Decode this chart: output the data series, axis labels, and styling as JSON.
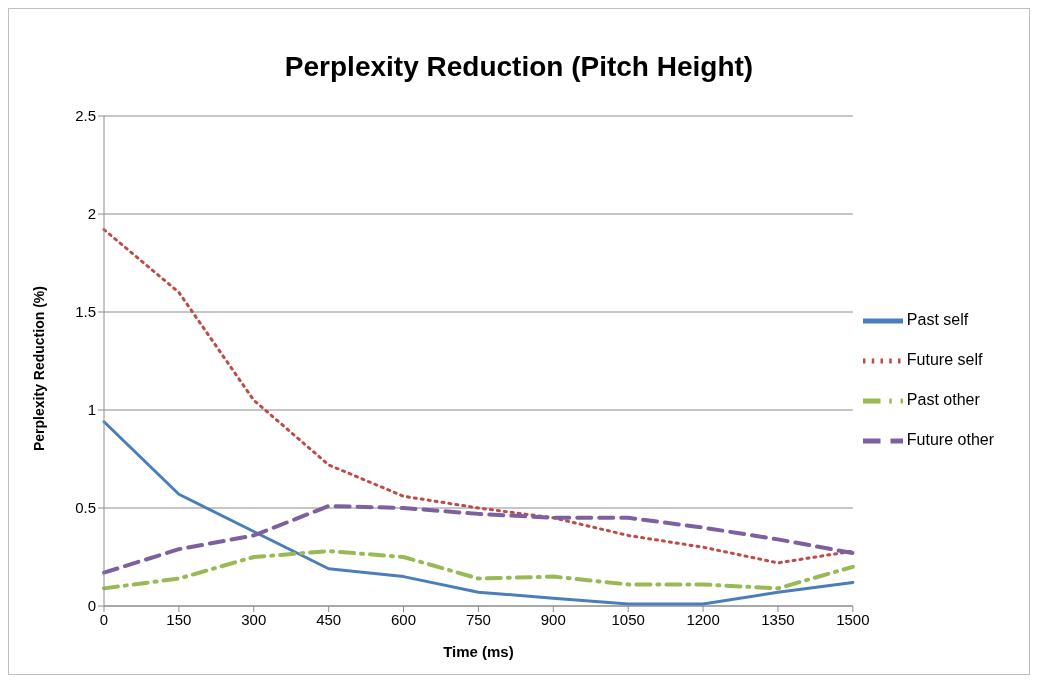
{
  "chart_data": {
    "type": "line",
    "title": "Perplexity Reduction (Pitch Height)",
    "xlabel": "Time (ms)",
    "ylabel": "Perplexity Reduction (%)",
    "categories": [
      "0",
      "150",
      "300",
      "450",
      "600",
      "750",
      "900",
      "1050",
      "1200",
      "1350",
      "1500"
    ],
    "series": [
      {
        "name": "Past self",
        "color": "#4a7ebb",
        "line_style": "solid",
        "values": [
          0.94,
          0.57,
          0.38,
          0.19,
          0.15,
          0.07,
          0.04,
          0.01,
          0.01,
          0.07,
          0.12
        ]
      },
      {
        "name": "Future self",
        "color": "#be4b48",
        "line_style": "dotted",
        "values": [
          1.92,
          1.6,
          1.05,
          0.72,
          0.56,
          0.5,
          0.45,
          0.36,
          0.3,
          0.22,
          0.28
        ]
      },
      {
        "name": "Past other",
        "color": "#98b954",
        "line_style": "dashdot",
        "values": [
          0.09,
          0.14,
          0.25,
          0.28,
          0.25,
          0.14,
          0.15,
          0.11,
          0.11,
          0.09,
          0.2
        ]
      },
      {
        "name": "Future other",
        "color": "#7d60a0",
        "line_style": "dashed",
        "values": [
          0.17,
          0.29,
          0.36,
          0.51,
          0.5,
          0.47,
          0.45,
          0.45,
          0.4,
          0.34,
          0.27
        ]
      }
    ],
    "ylim": [
      0,
      2.5
    ],
    "yticks": [
      0,
      0.5,
      1,
      1.5,
      2,
      2.5
    ],
    "grid": "y",
    "legend": "right",
    "marker": "none"
  }
}
